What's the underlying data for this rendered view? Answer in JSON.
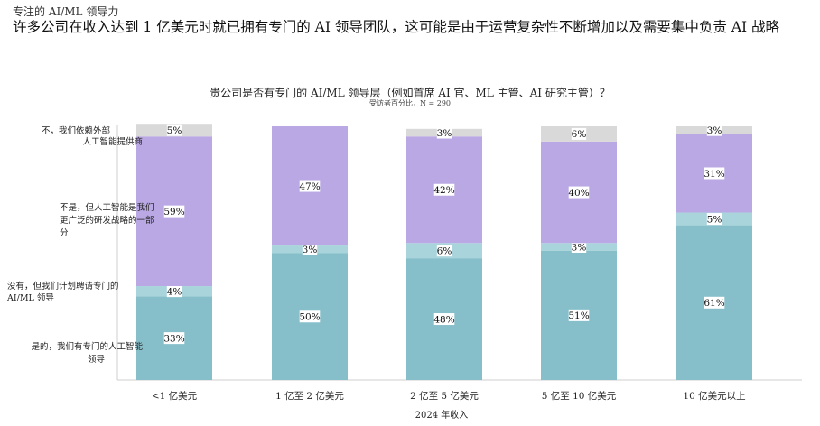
{
  "header": {
    "eyebrow": "专注的 AI/ML 领导力",
    "headline": "许多公司在收入达到 1 亿美元时就已拥有专门的 AI 领导团队，这可能是由于运营复杂性不断增加以及需要集中负责 AI 战略"
  },
  "chart_data": {
    "type": "bar",
    "stacked": true,
    "title": "贵公司是否有专门的 AI/ML 领导层（例如首席 AI 官、ML 主管、AI 研究主管）？",
    "subtitle": "受访者百分比，N = 290",
    "xlabel": "2024 年收入",
    "categories": [
      "<1 亿美元",
      "1 亿至 2 亿美元",
      "2 亿至 5 亿美元",
      "5 亿至 10 亿美元",
      "10 亿美元以上"
    ],
    "ylim": [
      0,
      100
    ],
    "series": [
      {
        "name": "是的，我们有专门的人工智能领导",
        "color": "#86bfca",
        "values": [
          33,
          50,
          48,
          51,
          61
        ]
      },
      {
        "name": "没有，但我们计划聘请专门的 AI/ML 领导",
        "color": "#a9d4db",
        "values": [
          4,
          3,
          6,
          3,
          5
        ]
      },
      {
        "name": "不是，但人工智能是我们更广泛的研发战略的一部分",
        "color": "#b9a8e3",
        "values": [
          59,
          47,
          42,
          40,
          31
        ]
      },
      {
        "name": "不，我们依赖外部人工智能提供商",
        "color": "#d9d9d9",
        "values": [
          5,
          0,
          3,
          6,
          3
        ]
      }
    ],
    "legend_placement": "left",
    "legend_lines": [
      [
        "不，我们依赖外部",
        "人工智能提供商"
      ],
      [
        "不是，但人工智能是我们",
        "更广泛的研发战略的一部",
        "分"
      ],
      [
        "没有，但我们计划聘请专门的",
        "AI/ML 领导"
      ],
      [
        "是的，我们有专门的人工智能",
        "领导"
      ]
    ]
  }
}
